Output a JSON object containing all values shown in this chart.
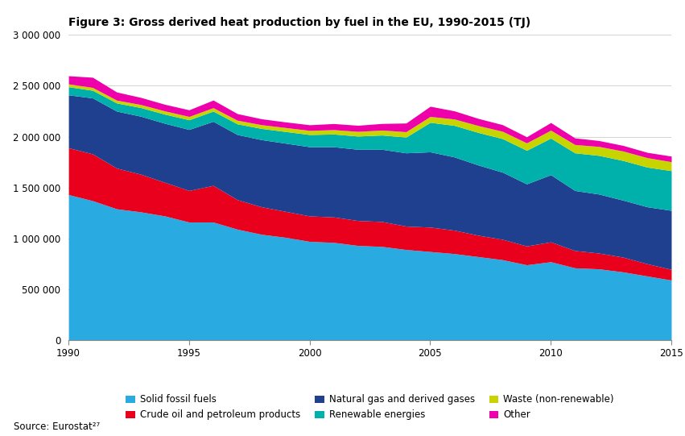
{
  "title": "Figure 3: Gross derived heat production by fuel in the EU, 1990-2015 (TJ)",
  "source": "Source: Eurostat²⁷",
  "years": [
    1990,
    1991,
    1992,
    1993,
    1994,
    1995,
    1996,
    1997,
    1998,
    1999,
    2000,
    2001,
    2002,
    2003,
    2004,
    2005,
    2006,
    2007,
    2008,
    2009,
    2010,
    2011,
    2012,
    2013,
    2014,
    2015
  ],
  "series": [
    {
      "label": "Solid fossil fuels",
      "color": "#29ABE2",
      "values": [
        1430000,
        1370000,
        1290000,
        1260000,
        1220000,
        1160000,
        1160000,
        1090000,
        1040000,
        1010000,
        970000,
        960000,
        930000,
        920000,
        890000,
        870000,
        850000,
        820000,
        790000,
        740000,
        770000,
        710000,
        700000,
        670000,
        630000,
        590000
      ]
    },
    {
      "label": "Crude oil and petroleum products",
      "color": "#E8001C",
      "values": [
        460000,
        460000,
        400000,
        370000,
        330000,
        310000,
        360000,
        290000,
        270000,
        255000,
        250000,
        250000,
        245000,
        245000,
        230000,
        240000,
        230000,
        210000,
        200000,
        185000,
        195000,
        170000,
        155000,
        145000,
        120000,
        105000
      ]
    },
    {
      "label": "Natural gas and derived gases",
      "color": "#1F3F8F",
      "values": [
        520000,
        550000,
        560000,
        570000,
        580000,
        600000,
        630000,
        640000,
        660000,
        670000,
        680000,
        690000,
        700000,
        710000,
        720000,
        740000,
        720000,
        690000,
        660000,
        610000,
        660000,
        590000,
        580000,
        560000,
        560000,
        580000
      ]
    },
    {
      "label": "Renewable energies",
      "color": "#00B0AA",
      "values": [
        80000,
        75000,
        80000,
        85000,
        90000,
        95000,
        100000,
        105000,
        110000,
        115000,
        120000,
        125000,
        130000,
        140000,
        155000,
        290000,
        310000,
        320000,
        330000,
        330000,
        360000,
        370000,
        380000,
        390000,
        390000,
        390000
      ]
    },
    {
      "label": "Waste (non-renewable)",
      "color": "#C8D400",
      "values": [
        28000,
        28000,
        28000,
        30000,
        32000,
        33000,
        34000,
        36000,
        37000,
        39000,
        41000,
        43000,
        46000,
        49000,
        53000,
        58000,
        63000,
        68000,
        72000,
        73000,
        78000,
        82000,
        88000,
        93000,
        93000,
        88000
      ]
    },
    {
      "label": "Other",
      "color": "#EE00AA",
      "values": [
        80000,
        100000,
        80000,
        70000,
        65000,
        65000,
        75000,
        65000,
        58000,
        55000,
        55000,
        60000,
        60000,
        65000,
        85000,
        100000,
        80000,
        70000,
        65000,
        60000,
        75000,
        65000,
        58000,
        55000,
        52000,
        55000
      ]
    }
  ],
  "ylim": [
    0,
    3000000
  ],
  "yticks": [
    0,
    500000,
    1000000,
    1500000,
    2000000,
    2500000,
    3000000
  ],
  "ytick_labels": [
    "0",
    "500 000",
    "1 000 000",
    "1 500 000",
    "2 000 000",
    "2 500 000",
    "3 000 000"
  ],
  "xticks": [
    1990,
    1995,
    2000,
    2005,
    2010,
    2015
  ],
  "background_color": "#FFFFFF",
  "grid_color": "#CCCCCC"
}
